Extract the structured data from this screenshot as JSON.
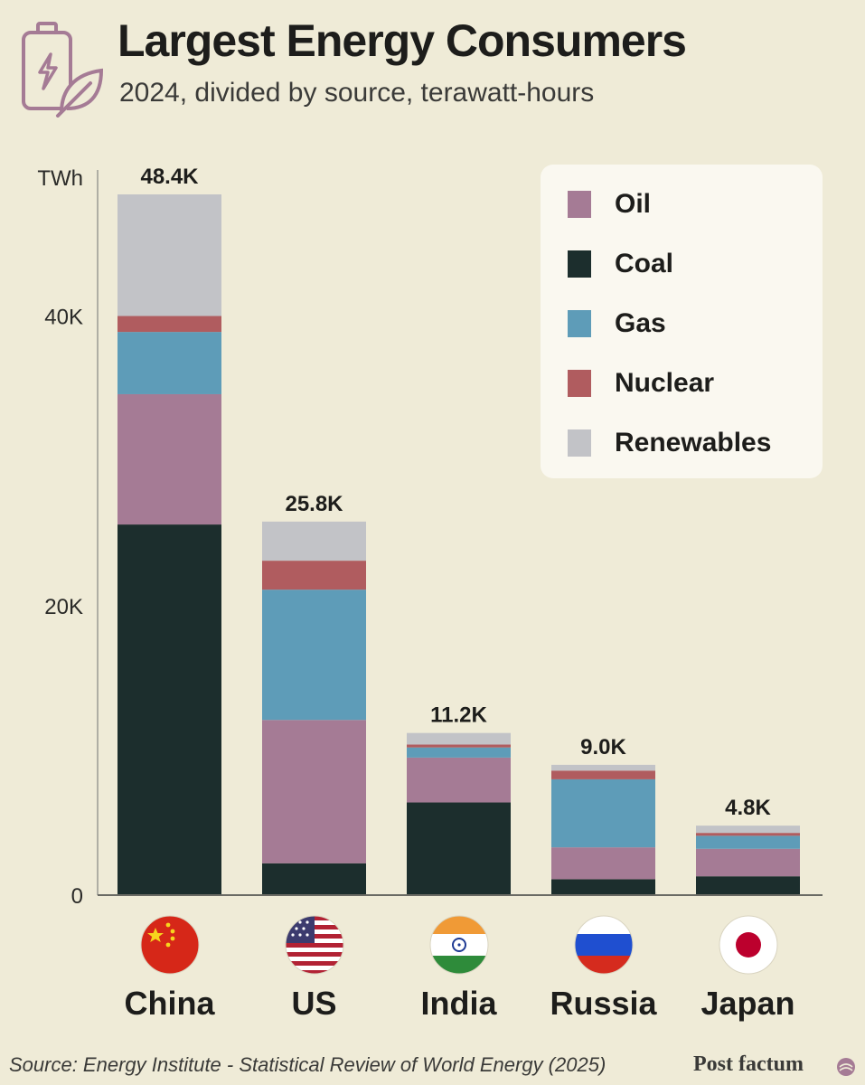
{
  "title": "Largest Energy Consumers",
  "subtitle": "2024, divided by source, terawatt-hours",
  "icons": {
    "header": "battery-leaf-icon",
    "brand": "brand-emblem-icon"
  },
  "colors": {
    "background": "#efebd7",
    "Oil": "#a57b95",
    "Coal": "#1c2e2d",
    "Gas": "#5e9cb8",
    "Nuclear": "#b05c5f",
    "Renewables": "#c2c3c7"
  },
  "legend": [
    "Oil",
    "Coal",
    "Gas",
    "Nuclear",
    "Renewables"
  ],
  "source": "Source: Energy Institute - Statistical Review of World Energy (2025)",
  "brand": "Post factum",
  "chart_data": {
    "type": "bar",
    "stacked": true,
    "y_unit_label": "TWh",
    "ylim": [
      0,
      48400
    ],
    "yticks": [
      0,
      20000,
      40000
    ],
    "ytick_labels": [
      "0",
      "20K",
      "40K"
    ],
    "grid": false,
    "legend_position": "top-right",
    "categories": [
      "China",
      "US",
      "India",
      "Russia",
      "Japan"
    ],
    "flags": [
      "china-flag-icon",
      "us-flag-icon",
      "india-flag-icon",
      "russia-flag-icon",
      "japan-flag-icon"
    ],
    "totals": [
      48400,
      25800,
      11200,
      9000,
      4800
    ],
    "total_labels": [
      "48.4K",
      "25.8K",
      "11.2K",
      "9.0K",
      "4.8K"
    ],
    "series": [
      {
        "name": "Coal",
        "values": [
          25600,
          2200,
          6400,
          1100,
          1300
        ]
      },
      {
        "name": "Oil",
        "values": [
          9000,
          9900,
          3100,
          2200,
          1900
        ]
      },
      {
        "name": "Gas",
        "values": [
          4300,
          9000,
          700,
          4700,
          900
        ]
      },
      {
        "name": "Nuclear",
        "values": [
          1100,
          2000,
          200,
          600,
          200
        ]
      },
      {
        "name": "Renewables",
        "values": [
          8400,
          2700,
          800,
          400,
          500
        ]
      }
    ]
  }
}
